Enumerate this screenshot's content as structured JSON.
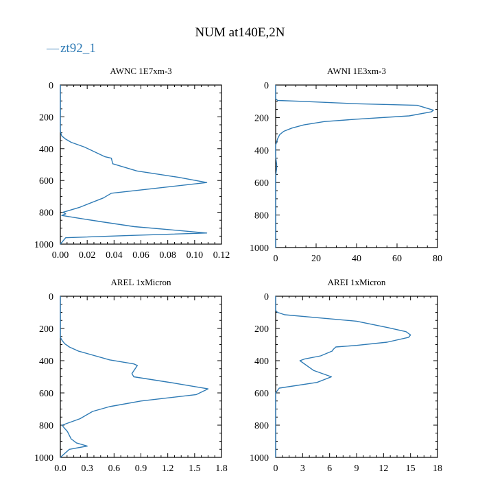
{
  "figure": {
    "title": "NUM at140E,2N",
    "legend_label": "zt92_1",
    "legend_dash": "—",
    "series_color": "#2f7bb5"
  },
  "chart_data": [
    {
      "type": "line",
      "title": "AWNC  1E7xm-3",
      "xlim": [
        0,
        0.12
      ],
      "ylim": [
        1000,
        0
      ],
      "xticks": [
        0,
        0.02,
        0.04,
        0.06,
        0.08,
        0.1,
        0.12
      ],
      "xtick_labels": [
        "0.00",
        "0.02",
        "0.04",
        "0.06",
        "0.08",
        "0.10",
        "0.12"
      ],
      "yticks": [
        0,
        200,
        400,
        600,
        800,
        1000
      ],
      "ytick_labels": [
        "0",
        "200",
        "400",
        "600",
        "800",
        "1000"
      ],
      "series": [
        {
          "name": "zt92_1",
          "x": [
            0,
            0,
            0.001,
            0.004,
            0.008,
            0.018,
            0.033,
            0.038,
            0.039,
            0.057,
            0.088,
            0.109,
            0.07,
            0.038,
            0.032,
            0.014,
            0.002,
            0.004,
            0.001,
            0.012,
            0.031,
            0.055,
            0.082,
            0.109,
            0.055,
            0.004,
            0
          ],
          "y": [
            0,
            290,
            320,
            340,
            360,
            390,
            450,
            460,
            495,
            540,
            580,
            613,
            650,
            680,
            710,
            770,
            800,
            810,
            820,
            835,
            860,
            890,
            910,
            930,
            945,
            960,
            1000
          ]
        }
      ]
    },
    {
      "type": "line",
      "title": "AWNI  1E3xm-3",
      "xlim": [
        0,
        80
      ],
      "ylim": [
        1000,
        0
      ],
      "xticks": [
        0,
        20,
        40,
        60,
        80
      ],
      "xtick_labels": [
        "0",
        "20",
        "40",
        "60",
        "80"
      ],
      "yticks": [
        0,
        200,
        400,
        600,
        800,
        1000
      ],
      "ytick_labels": [
        "0",
        "200",
        "400",
        "600",
        "800",
        "1000"
      ],
      "series": [
        {
          "name": "zt92_1",
          "x": [
            0,
            0,
            1,
            12,
            40,
            70,
            78,
            77,
            66,
            40,
            24,
            14,
            8,
            4,
            2,
            1,
            0.5,
            0,
            0,
            0.5,
            0.5,
            0,
            0
          ],
          "y": [
            0,
            85,
            95,
            100,
            115,
            125,
            155,
            165,
            190,
            210,
            225,
            245,
            265,
            285,
            305,
            330,
            350,
            370,
            440,
            490,
            510,
            560,
            1000
          ]
        }
      ]
    },
    {
      "type": "line",
      "title": "AREL  1xMicron",
      "xlim": [
        0,
        1.8
      ],
      "ylim": [
        1000,
        0
      ],
      "xticks": [
        0,
        0.3,
        0.6,
        0.9,
        1.2,
        1.5,
        1.8
      ],
      "xtick_labels": [
        "0.0",
        "0.3",
        "0.6",
        "0.9",
        "1.2",
        "1.5",
        "1.8"
      ],
      "yticks": [
        0,
        200,
        400,
        600,
        800,
        1000
      ],
      "ytick_labels": [
        "0",
        "200",
        "400",
        "600",
        "800",
        "1000"
      ],
      "series": [
        {
          "name": "zt92_1",
          "x": [
            0,
            0,
            0.02,
            0.05,
            0.1,
            0.2,
            0.55,
            0.82,
            0.86,
            0.8,
            0.82,
            1.28,
            1.65,
            1.52,
            0.9,
            0.55,
            0.36,
            0.22,
            0.02,
            0.04,
            0.08,
            0.12,
            0.18,
            0.3,
            0.1,
            0
          ],
          "y": [
            0,
            255,
            275,
            295,
            315,
            340,
            395,
            420,
            430,
            480,
            500,
            540,
            575,
            610,
            650,
            685,
            715,
            760,
            800,
            815,
            840,
            885,
            910,
            930,
            950,
            1000
          ]
        }
      ]
    },
    {
      "type": "line",
      "title": "AREI  1xMicron",
      "xlim": [
        0,
        18
      ],
      "ylim": [
        1000,
        0
      ],
      "xticks": [
        0,
        3,
        6,
        9,
        12,
        15,
        18
      ],
      "xtick_labels": [
        "0",
        "3",
        "6",
        "9",
        "12",
        "15",
        "18"
      ],
      "yticks": [
        0,
        200,
        400,
        600,
        800,
        1000
      ],
      "ytick_labels": [
        "0",
        "200",
        "400",
        "600",
        "800",
        "1000"
      ],
      "series": [
        {
          "name": "zt92_1",
          "x": [
            0,
            0,
            0.2,
            1,
            4,
            9,
            12.5,
            14.5,
            15,
            14.8,
            12.4,
            9,
            6.7,
            6.4,
            6.3,
            5,
            3.2,
            2.7,
            4.2,
            6.2,
            4.6,
            0.4,
            0,
            0
          ],
          "y": [
            0,
            88,
            100,
            115,
            130,
            155,
            195,
            220,
            240,
            255,
            285,
            305,
            315,
            330,
            340,
            370,
            390,
            400,
            460,
            500,
            535,
            570,
            600,
            1000
          ]
        }
      ]
    }
  ]
}
